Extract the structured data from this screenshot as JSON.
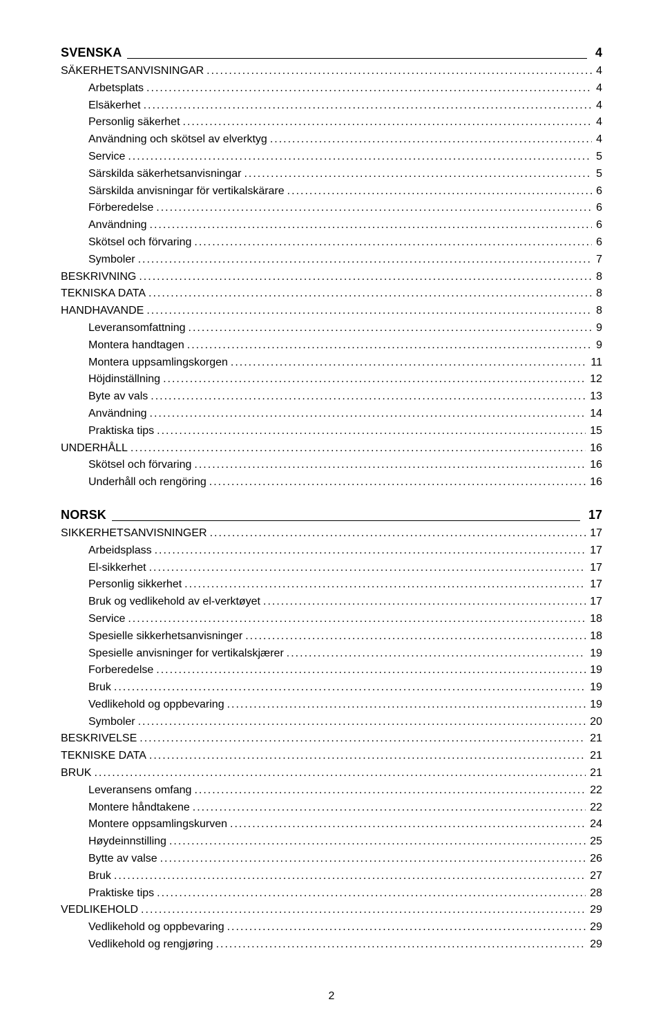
{
  "page_number": "2",
  "dot_fill": "................................................................................................................................................................................................................................................................................................",
  "toc": [
    {
      "group_title": "SVENSKA",
      "group_page": "4",
      "items": [
        {
          "level": 1,
          "label": "SÄKERHETSANVISNINGAR",
          "page": "4"
        },
        {
          "level": 2,
          "label": "Arbetsplats",
          "page": "4"
        },
        {
          "level": 2,
          "label": "Elsäkerhet",
          "page": "4"
        },
        {
          "level": 2,
          "label": "Personlig säkerhet",
          "page": "4"
        },
        {
          "level": 2,
          "label": "Användning och skötsel av elverktyg",
          "page": "4"
        },
        {
          "level": 2,
          "label": "Service",
          "page": "5"
        },
        {
          "level": 2,
          "label": "Särskilda säkerhetsanvisningar",
          "page": "5"
        },
        {
          "level": 2,
          "label": "Särskilda anvisningar för vertikalskärare",
          "page": "6"
        },
        {
          "level": 2,
          "label": "Förberedelse",
          "page": "6"
        },
        {
          "level": 2,
          "label": "Användning",
          "page": "6"
        },
        {
          "level": 2,
          "label": "Skötsel och förvaring",
          "page": "6"
        },
        {
          "level": 2,
          "label": "Symboler",
          "page": "7"
        },
        {
          "level": 1,
          "label": "BESKRIVNING",
          "page": "8"
        },
        {
          "level": 1,
          "label": "TEKNISKA DATA",
          "page": "8"
        },
        {
          "level": 1,
          "label": "HANDHAVANDE",
          "page": "8"
        },
        {
          "level": 2,
          "label": "Leveransomfattning",
          "page": "9"
        },
        {
          "level": 2,
          "label": "Montera handtagen",
          "page": "9"
        },
        {
          "level": 2,
          "label": "Montera uppsamlingskorgen",
          "page": "11"
        },
        {
          "level": 2,
          "label": "Höjdinställning",
          "page": "12"
        },
        {
          "level": 2,
          "label": "Byte av vals",
          "page": "13"
        },
        {
          "level": 2,
          "label": "Användning",
          "page": "14"
        },
        {
          "level": 2,
          "label": "Praktiska tips",
          "page": "15"
        },
        {
          "level": 1,
          "label": "UNDERHÅLL",
          "page": "16"
        },
        {
          "level": 2,
          "label": "Skötsel och förvaring",
          "page": "16"
        },
        {
          "level": 2,
          "label": "Underhåll och rengöring",
          "page": "16"
        }
      ]
    },
    {
      "group_title": "NORSK",
      "group_page": "17",
      "items": [
        {
          "level": 1,
          "label": "SIKKERHETSANVISNINGER",
          "page": "17"
        },
        {
          "level": 2,
          "label": "Arbeidsplass",
          "page": "17"
        },
        {
          "level": 2,
          "label": "El-sikkerhet",
          "page": "17"
        },
        {
          "level": 2,
          "label": "Personlig sikkerhet",
          "page": "17"
        },
        {
          "level": 2,
          "label": "Bruk og vedlikehold av el-verktøyet",
          "page": "17"
        },
        {
          "level": 2,
          "label": "Service",
          "page": "18"
        },
        {
          "level": 2,
          "label": "Spesielle sikkerhetsanvisninger",
          "page": "18"
        },
        {
          "level": 2,
          "label": "Spesielle anvisninger for vertikalskjærer",
          "page": "19"
        },
        {
          "level": 2,
          "label": "Forberedelse",
          "page": "19"
        },
        {
          "level": 2,
          "label": "Bruk",
          "page": "19"
        },
        {
          "level": 2,
          "label": "Vedlikehold og oppbevaring",
          "page": "19"
        },
        {
          "level": 2,
          "label": "Symboler",
          "page": "20"
        },
        {
          "level": 1,
          "label": "BESKRIVELSE",
          "page": "21"
        },
        {
          "level": 1,
          "label": "TEKNISKE DATA",
          "page": "21"
        },
        {
          "level": 1,
          "label": "BRUK",
          "page": "21"
        },
        {
          "level": 2,
          "label": "Leveransens omfang",
          "page": "22"
        },
        {
          "level": 2,
          "label": "Montere håndtakene",
          "page": "22"
        },
        {
          "level": 2,
          "label": "Montere oppsamlingskurven",
          "page": "24"
        },
        {
          "level": 2,
          "label": "Høydeinnstilling",
          "page": "25"
        },
        {
          "level": 2,
          "label": "Bytte av valse",
          "page": "26"
        },
        {
          "level": 2,
          "label": "Bruk",
          "page": "27"
        },
        {
          "level": 2,
          "label": "Praktiske tips",
          "page": "28"
        },
        {
          "level": 1,
          "label": "VEDLIKEHOLD",
          "page": "29"
        },
        {
          "level": 2,
          "label": "Vedlikehold og oppbevaring",
          "page": "29"
        },
        {
          "level": 2,
          "label": "Vedlikehold og rengjøring",
          "page": "29"
        }
      ]
    }
  ]
}
